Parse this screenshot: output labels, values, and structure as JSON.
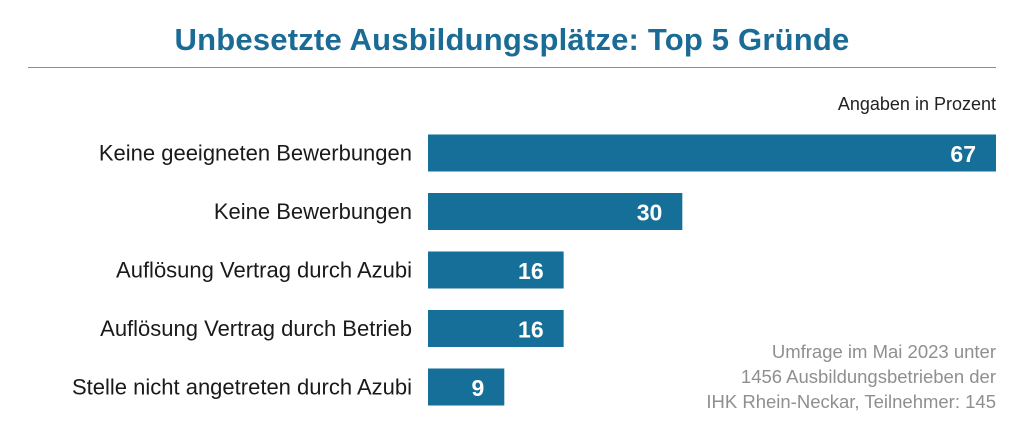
{
  "chart_data": {
    "type": "bar",
    "orientation": "horizontal",
    "title": "Unbesetzte Ausbildungsplätze: Top 5 Gründe",
    "unit_note": "Angaben in Prozent",
    "categories": [
      "Keine geeigneten Bewerbungen",
      "Keine Bewerbungen",
      "Auflösung Vertrag durch Azubi",
      "Auflösung Vertrag durch Betrieb",
      "Stelle nicht angetreten durch Azubi"
    ],
    "values": [
      67,
      30,
      16,
      16,
      9
    ],
    "xlim": [
      0,
      67
    ],
    "grid": false,
    "bar_color": "#166f98",
    "title_color": "#1a6c96"
  },
  "footnote": {
    "lines": [
      "Umfrage im Mai 2023 unter",
      "1456 Ausbildungsbetrieben der",
      "IHK Rhein-Neckar, Teilnehmer: 145"
    ]
  }
}
